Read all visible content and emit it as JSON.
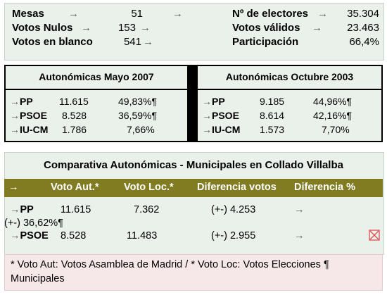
{
  "stats": {
    "mesas_label": "Mesas",
    "mesas_value": "51",
    "nulos_label": "Votos Nulos",
    "nulos_value": "153",
    "blanco_label": "Votos en blanco",
    "blanco_value": "541",
    "electores_label": "Nº de electores",
    "electores_value": "35.304",
    "validos_label": "Votos válidos",
    "validos_value": "23.463",
    "participacion_label": "Participación",
    "participacion_value": "66,4%"
  },
  "mayo2007": {
    "title": "Autonómicas Mayo 2007",
    "rows": [
      {
        "party": "PP",
        "votes": "11.615",
        "pct": "49,83%¶"
      },
      {
        "party": "PSOE",
        "votes": "8.528",
        "pct": "36,59%¶"
      },
      {
        "party": "IU-CM",
        "votes": "1.786",
        "pct": "7,66%"
      }
    ]
  },
  "octubre2003": {
    "title": "Autonómicas Octubre 2003",
    "rows": [
      {
        "party": "PP",
        "votes": "9.185",
        "pct": "44,96%¶"
      },
      {
        "party": "PSOE",
        "votes": "8.614",
        "pct": "42,16%¶"
      },
      {
        "party": "IU-CM",
        "votes": "1.573",
        "pct": "7,70%"
      }
    ]
  },
  "comparativa": {
    "title": "Comparativa Autonómicas - Municipales en Collado Villalba",
    "headers": [
      "Voto Aut.*",
      "Voto Loc.*",
      "Diferencia votos",
      "Diferencia %"
    ],
    "rows": [
      {
        "party": "PP",
        "aut": "11.615",
        "loc": "7.362",
        "diff": "(+-) 4.253",
        "pct": "(+-) 36,62%¶"
      },
      {
        "party": "PSOE",
        "aut": "8.528",
        "loc": "11.483",
        "diff": "(+-) 2.955",
        "pct": ""
      }
    ],
    "footnote": "* Voto Aut: Votos Asamblea de Madrid / * Voto Loc: Votos Elecciones ¶ Municipales"
  },
  "colors": {
    "panel": "#e9f1ea",
    "header_bar": "#817c22",
    "footnote_bg": "#f6e8e8"
  }
}
